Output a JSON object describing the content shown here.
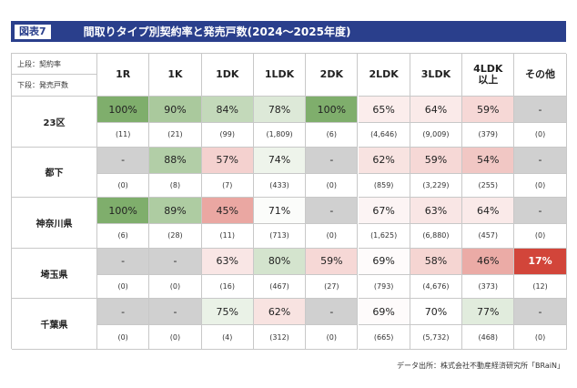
{
  "header": {
    "figure_label": "図表7",
    "title": "間取りタイプ別契約率と発売戸数(2024〜2025年度)"
  },
  "corner": {
    "top_label": "上段：契約率",
    "bottom_label": "下段：発売戸数"
  },
  "source": "データ出所：株式会社不動産経済研究所「BRaiN」",
  "colors": {
    "header_bg": "#2a3f8c",
    "green_strong": "#7fae6c",
    "red_strong": "#d2453a",
    "count_row_bg": "#ffffff",
    "na_bg": "#d0d0d0"
  },
  "chart_data": {
    "type": "table",
    "columns": [
      "1R",
      "1K",
      "1DK",
      "1LDK",
      "2DK",
      "2LDK",
      "3LDK",
      "4LDK\n以上",
      "その他"
    ],
    "rows": [
      {
        "region": "23区",
        "rate_labels": [
          "100%",
          "90%",
          "84%",
          "78%",
          "100%",
          "65%",
          "64%",
          "59%",
          "-"
        ],
        "rate_values": [
          100,
          90,
          84,
          78,
          100,
          65,
          64,
          59,
          null
        ],
        "units_labels": [
          "(11)",
          "(21)",
          "(99)",
          "(1,809)",
          "(6)",
          "(4,646)",
          "(9,009)",
          "(379)",
          "(0)"
        ],
        "units_values": [
          11,
          21,
          99,
          1809,
          6,
          4646,
          9009,
          379,
          0
        ]
      },
      {
        "region": "都下",
        "rate_labels": [
          "-",
          "88%",
          "57%",
          "74%",
          "-",
          "62%",
          "59%",
          "54%",
          "-"
        ],
        "rate_values": [
          null,
          88,
          57,
          74,
          null,
          62,
          59,
          54,
          null
        ],
        "units_labels": [
          "(0)",
          "(8)",
          "(7)",
          "(433)",
          "(0)",
          "(859)",
          "(3,229)",
          "(255)",
          "(0)"
        ],
        "units_values": [
          0,
          8,
          7,
          433,
          0,
          859,
          3229,
          255,
          0
        ]
      },
      {
        "region": "神奈川県",
        "rate_labels": [
          "100%",
          "89%",
          "45%",
          "71%",
          "-",
          "67%",
          "63%",
          "64%",
          "-"
        ],
        "rate_values": [
          100,
          89,
          45,
          71,
          null,
          67,
          63,
          64,
          null
        ],
        "units_labels": [
          "(6)",
          "(28)",
          "(11)",
          "(713)",
          "(0)",
          "(1,625)",
          "(6,880)",
          "(457)",
          "(0)"
        ],
        "units_values": [
          6,
          28,
          11,
          713,
          0,
          1625,
          6880,
          457,
          0
        ]
      },
      {
        "region": "埼玉県",
        "rate_labels": [
          "-",
          "-",
          "63%",
          "80%",
          "59%",
          "69%",
          "58%",
          "46%",
          "17%"
        ],
        "rate_values": [
          null,
          null,
          63,
          80,
          59,
          69,
          58,
          46,
          17
        ],
        "units_labels": [
          "(0)",
          "(0)",
          "(16)",
          "(467)",
          "(27)",
          "(793)",
          "(4,676)",
          "(373)",
          "(12)"
        ],
        "units_values": [
          0,
          0,
          16,
          467,
          27,
          793,
          4676,
          373,
          12
        ]
      },
      {
        "region": "千葉県",
        "rate_labels": [
          "-",
          "-",
          "75%",
          "62%",
          "-",
          "69%",
          "70%",
          "77%",
          "-"
        ],
        "rate_values": [
          null,
          null,
          75,
          62,
          null,
          69,
          70,
          77,
          null
        ],
        "units_labels": [
          "(0)",
          "(0)",
          "(4)",
          "(312)",
          "(0)",
          "(665)",
          "(5,732)",
          "(468)",
          "(0)"
        ],
        "units_values": [
          0,
          0,
          4,
          312,
          0,
          665,
          5732,
          468,
          0
        ]
      }
    ]
  }
}
